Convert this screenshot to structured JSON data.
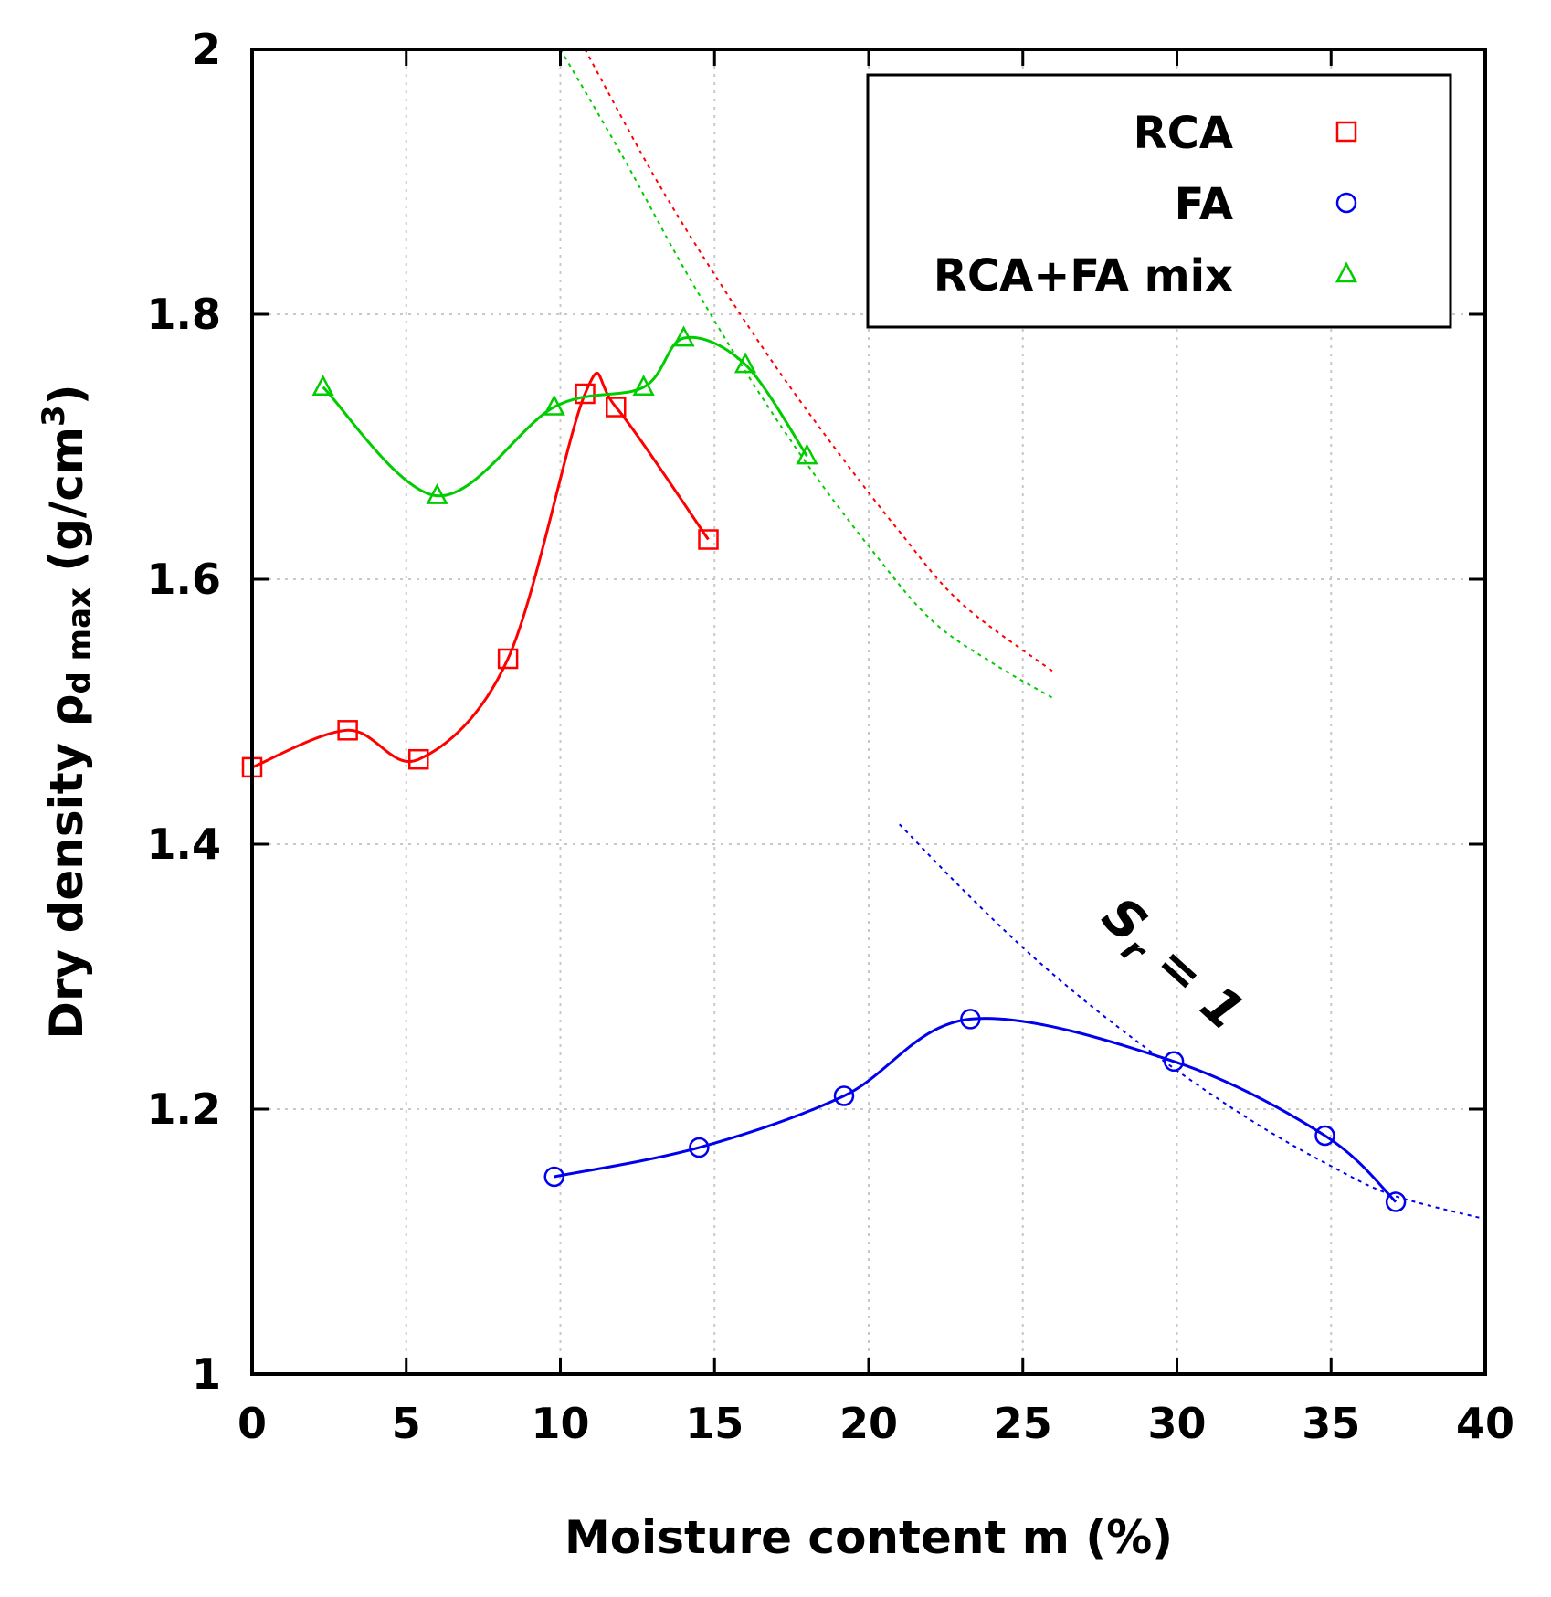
{
  "chart_data": {
    "type": "line",
    "title": "",
    "xlabel": "Moisture content m (%)",
    "ylabel": "Dry density ρd max (g/cm³)",
    "ylabel_parts": {
      "main": "Dry density ",
      "rho": "ρ",
      "sub": "d max",
      "unit_open": " (g/cm",
      "sup": "3",
      "unit_close": ")"
    },
    "xlim": [
      0,
      40
    ],
    "ylim": [
      1,
      2
    ],
    "xticks": [
      0,
      5,
      10,
      15,
      20,
      25,
      30,
      35,
      40
    ],
    "yticks": [
      1,
      1.2,
      1.4,
      1.6,
      1.8,
      2
    ],
    "xtick_labels": [
      "0",
      "5",
      "10",
      "15",
      "20",
      "25",
      "30",
      "35",
      "40"
    ],
    "ytick_labels": [
      "1",
      "1.2",
      "1.4",
      "1.6",
      "1.8",
      "2"
    ],
    "grid": true,
    "legend_position": "top-right",
    "series": [
      {
        "name": "RCA",
        "color": "#ff0000",
        "marker": "square",
        "x": [
          0.0,
          3.1,
          5.4,
          8.3,
          10.8,
          11.8,
          14.8
        ],
        "y": [
          1.458,
          1.486,
          1.464,
          1.54,
          1.74,
          1.73,
          1.63
        ]
      },
      {
        "name": "FA",
        "color": "#0000ee",
        "marker": "circle",
        "x": [
          9.8,
          14.5,
          19.2,
          23.3,
          29.9,
          34.8,
          37.1
        ],
        "y": [
          1.149,
          1.171,
          1.21,
          1.268,
          1.236,
          1.18,
          1.13
        ]
      },
      {
        "name": "RCA+FA mix",
        "color": "#00cc00",
        "marker": "triangle",
        "x": [
          2.3,
          6.0,
          9.8,
          12.7,
          14.0,
          16.0,
          18.0
        ],
        "y": [
          1.745,
          1.663,
          1.73,
          1.745,
          1.782,
          1.762,
          1.693
        ]
      }
    ],
    "saturation_curves": [
      {
        "color": "#ff0000",
        "x": [
          10.8,
          13,
          15,
          17,
          19,
          21,
          23,
          26
        ],
        "y": [
          2.0,
          1.906,
          1.83,
          1.76,
          1.696,
          1.636,
          1.582,
          1.53
        ]
      },
      {
        "color": "#00cc00",
        "x": [
          10.0,
          12,
          14,
          16,
          18,
          20,
          22,
          24,
          26
        ],
        "y": [
          2.0,
          1.92,
          1.835,
          1.757,
          1.687,
          1.625,
          1.57,
          1.537,
          1.51
        ]
      },
      {
        "color": "#0000ee",
        "x": [
          21.0,
          23,
          25,
          27,
          29,
          31,
          33,
          35,
          37,
          40
        ],
        "y": [
          1.415,
          1.367,
          1.322,
          1.282,
          1.246,
          1.213,
          1.183,
          1.157,
          1.135,
          1.117
        ]
      }
    ],
    "annotations": [
      {
        "text": "S",
        "subscript": "r",
        "tail": " = 1",
        "x": 29.5,
        "y": 1.3,
        "rotation_deg": 42
      }
    ]
  }
}
